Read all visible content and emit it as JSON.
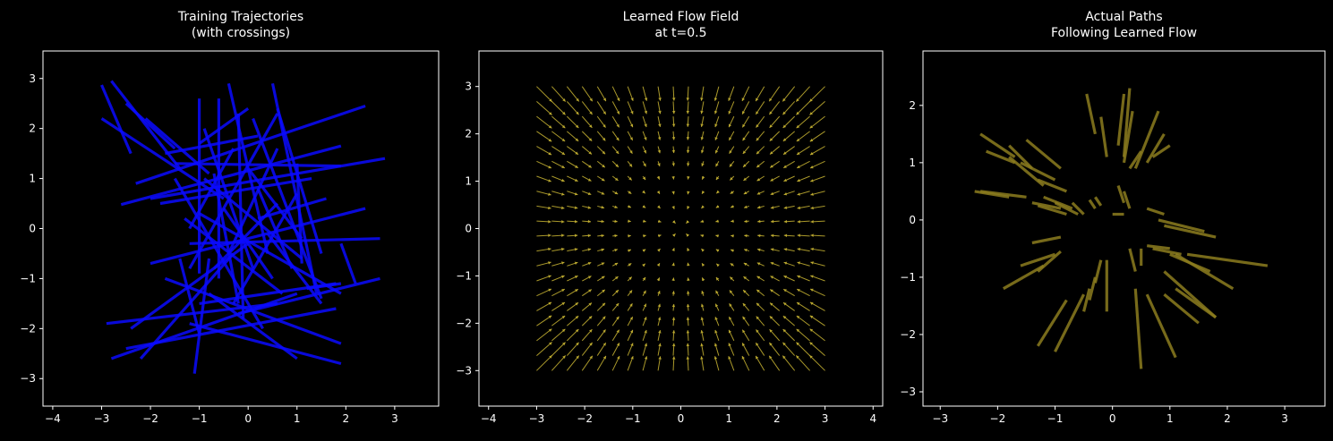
{
  "figure": {
    "background": "#000000",
    "foreground": "#ffffff"
  },
  "chart_data": [
    {
      "type": "line",
      "title": "Training Trajectories\n(with crossings)",
      "xlabel": "",
      "ylabel": "",
      "xlim": [
        -4.2,
        3.9
      ],
      "ylim": [
        -3.55,
        3.55
      ],
      "xticks": [
        -4,
        -3,
        -2,
        -1,
        0,
        1,
        2,
        3
      ],
      "yticks": [
        -3,
        -2,
        -1,
        0,
        1,
        2,
        3
      ],
      "grid": false,
      "color": "#0a0aff",
      "series": [
        {
          "x": [
            -3.0,
            -2.4
          ],
          "y": [
            2.87,
            1.5
          ]
        },
        {
          "x": [
            -2.8,
            -1.4
          ],
          "y": [
            2.95,
            1.2
          ]
        },
        {
          "x": [
            -2.5,
            -1.5
          ],
          "y": [
            2.5,
            1.6
          ]
        },
        {
          "x": [
            -2.1,
            -0.8
          ],
          "y": [
            2.2,
            1.1
          ]
        },
        {
          "x": [
            -3.0,
            -0.5
          ],
          "y": [
            2.2,
            0.6
          ]
        },
        {
          "x": [
            -2.6,
            1.9
          ],
          "y": [
            0.48,
            1.65
          ]
        },
        {
          "x": [
            -2.3,
            2.4
          ],
          "y": [
            0.9,
            2.45
          ]
        },
        {
          "x": [
            -1.8,
            1.3
          ],
          "y": [
            0.5,
            1.0
          ]
        },
        {
          "x": [
            -2.0,
            2.8
          ],
          "y": [
            0.6,
            1.4
          ]
        },
        {
          "x": [
            -1.5,
            1.9
          ],
          "y": [
            1.3,
            1.25
          ]
        },
        {
          "x": [
            -1.7,
            0.2
          ],
          "y": [
            1.5,
            1.85
          ]
        },
        {
          "x": [
            -1.0,
            -1.0
          ],
          "y": [
            2.6,
            -0.9
          ]
        },
        {
          "x": [
            -1.0,
            0.0
          ],
          "y": [
            1.7,
            2.4
          ]
        },
        {
          "x": [
            -0.6,
            -0.6
          ],
          "y": [
            2.6,
            -1.0
          ]
        },
        {
          "x": [
            -0.9,
            0.1
          ],
          "y": [
            2.0,
            -0.8
          ]
        },
        {
          "x": [
            -0.4,
            0.4
          ],
          "y": [
            2.9,
            -0.5
          ]
        },
        {
          "x": [
            0.5,
            1.4
          ],
          "y": [
            2.9,
            -1.3
          ]
        },
        {
          "x": [
            0.6,
            1.5
          ],
          "y": [
            2.4,
            -0.5
          ]
        },
        {
          "x": [
            0.1,
            1.5
          ],
          "y": [
            2.2,
            -1.4
          ]
        },
        {
          "x": [
            -0.2,
            -0.1
          ],
          "y": [
            2.3,
            -1.8
          ]
        },
        {
          "x": [
            0.6,
            -1.2
          ],
          "y": [
            2.3,
            -0.8
          ]
        },
        {
          "x": [
            -1.3,
            0.7
          ],
          "y": [
            0.2,
            -1.3
          ]
        },
        {
          "x": [
            -1.5,
            0.3
          ],
          "y": [
            1.0,
            -2.0
          ]
        },
        {
          "x": [
            -2.0,
            2.4
          ],
          "y": [
            -0.7,
            0.4
          ]
        },
        {
          "x": [
            -1.2,
            2.7
          ],
          "y": [
            -0.3,
            -0.2
          ]
        },
        {
          "x": [
            -1.0,
            1.9
          ],
          "y": [
            0.3,
            -1.3
          ]
        },
        {
          "x": [
            -0.9,
            1.1
          ],
          "y": [
            1.0,
            -0.6
          ]
        },
        {
          "x": [
            0.0,
            1.1
          ],
          "y": [
            1.2,
            -0.2
          ]
        },
        {
          "x": [
            -0.4,
            0.6
          ],
          "y": [
            -0.5,
            1.6
          ]
        },
        {
          "x": [
            -0.7,
            -0.2
          ],
          "y": [
            1.1,
            -1.5
          ]
        },
        {
          "x": [
            -2.4,
            0.0
          ],
          "y": [
            -2.0,
            -0.3
          ]
        },
        {
          "x": [
            -2.2,
            -0.3
          ],
          "y": [
            -2.6,
            -0.5
          ]
        },
        {
          "x": [
            -2.8,
            1.0
          ],
          "y": [
            -2.6,
            -1.3
          ]
        },
        {
          "x": [
            -2.5,
            1.8
          ],
          "y": [
            -2.4,
            -1.6
          ]
        },
        {
          "x": [
            -2.9,
            0.6
          ],
          "y": [
            -1.9,
            -1.5
          ]
        },
        {
          "x": [
            -1.7,
            1.9
          ],
          "y": [
            -1.0,
            -2.3
          ]
        },
        {
          "x": [
            -1.4,
            -1.0
          ],
          "y": [
            -0.6,
            -2.1
          ]
        },
        {
          "x": [
            -0.8,
            -1.1
          ],
          "y": [
            -0.6,
            -2.9
          ]
        },
        {
          "x": [
            -1.0,
            1.8
          ],
          "y": [
            -1.5,
            -1.1
          ]
        },
        {
          "x": [
            -0.2,
            2.7
          ],
          "y": [
            -1.7,
            -1.0
          ]
        },
        {
          "x": [
            -0.8,
            1.0
          ],
          "y": [
            -1.3,
            -2.6
          ]
        },
        {
          "x": [
            -1.2,
            1.9
          ],
          "y": [
            -1.9,
            -2.7
          ]
        },
        {
          "x": [
            0.4,
            1.5
          ],
          "y": [
            -0.1,
            -1.5
          ]
        },
        {
          "x": [
            -0.3,
            1.0
          ],
          "y": [
            -1.5,
            0.7
          ]
        },
        {
          "x": [
            0.2,
            0.9
          ],
          "y": [
            0.8,
            -0.8
          ]
        },
        {
          "x": [
            1.0,
            1.1
          ],
          "y": [
            1.3,
            -0.7
          ]
        },
        {
          "x": [
            1.9,
            2.2
          ],
          "y": [
            -0.3,
            -1.1
          ]
        },
        {
          "x": [
            1.9,
            1.2
          ],
          "y": [
            -1.1,
            -1.2
          ]
        },
        {
          "x": [
            0.2,
            1.6
          ],
          "y": [
            0.2,
            0.6
          ]
        },
        {
          "x": [
            -1.2,
            -0.3
          ],
          "y": [
            0.0,
            1.6
          ]
        },
        {
          "x": [
            -0.7,
            0.6
          ],
          "y": [
            -0.8,
            0.5
          ]
        },
        {
          "x": [
            -0.5,
            0.5
          ],
          "y": [
            0.4,
            -1.0
          ]
        }
      ]
    },
    {
      "type": "quiver",
      "title": "Learned Flow Field\nat t=0.5",
      "xlabel": "",
      "ylabel": "",
      "xlim": [
        -4.2,
        4.2
      ],
      "ylim": [
        -3.75,
        3.75
      ],
      "xticks": [
        -4,
        -3,
        -2,
        -1,
        0,
        1,
        2,
        3,
        4
      ],
      "yticks": [
        -3,
        -2,
        -1,
        0,
        1,
        2,
        3
      ],
      "grid": false,
      "color": "#c8b432",
      "grid_x": {
        "start": -3,
        "stop": 3,
        "n": 20
      },
      "grid_y": {
        "start": -3,
        "stop": 3,
        "n": 20
      },
      "field": "radial-inward",
      "scale": 0.45
    },
    {
      "type": "line",
      "title": "Actual Paths\nFollowing Learned Flow",
      "xlabel": "",
      "ylabel": "",
      "xlim": [
        -3.3,
        3.7
      ],
      "ylim": [
        -3.25,
        2.95
      ],
      "xticks": [
        -3,
        -2,
        -1,
        0,
        1,
        2,
        3
      ],
      "yticks": [
        -3,
        -2,
        -1,
        0,
        1,
        2
      ],
      "grid": false,
      "color": "#8c7d1e",
      "series": [
        {
          "x": [
            -2.3,
            -1.7
          ],
          "y": [
            1.5,
            1.1
          ]
        },
        {
          "x": [
            -2.2,
            -1.7
          ],
          "y": [
            1.2,
            1.0
          ]
        },
        {
          "x": [
            -2.4,
            -1.8
          ],
          "y": [
            0.5,
            0.4
          ]
        },
        {
          "x": [
            -2.3,
            -1.5
          ],
          "y": [
            0.5,
            0.4
          ]
        },
        {
          "x": [
            -1.8,
            -1.4
          ],
          "y": [
            1.3,
            0.9
          ]
        },
        {
          "x": [
            -1.5,
            -0.9
          ],
          "y": [
            1.4,
            0.9
          ]
        },
        {
          "x": [
            -1.8,
            -1.2
          ],
          "y": [
            1.1,
            0.6
          ]
        },
        {
          "x": [
            -1.6,
            -1.0
          ],
          "y": [
            1.0,
            0.7
          ]
        },
        {
          "x": [
            -1.3,
            -0.8
          ],
          "y": [
            0.7,
            0.5
          ]
        },
        {
          "x": [
            -1.4,
            -0.9
          ],
          "y": [
            0.3,
            0.2
          ]
        },
        {
          "x": [
            -1.3,
            -0.8
          ],
          "y": [
            0.25,
            0.1
          ]
        },
        {
          "x": [
            -1.2,
            -0.7
          ],
          "y": [
            0.4,
            0.2
          ]
        },
        {
          "x": [
            -1.0,
            -0.6
          ],
          "y": [
            0.3,
            0.1
          ]
        },
        {
          "x": [
            -0.7,
            -0.5
          ],
          "y": [
            0.3,
            0.1
          ]
        },
        {
          "x": [
            -0.3,
            -0.2
          ],
          "y": [
            0.4,
            0.25
          ]
        },
        {
          "x": [
            -0.4,
            -0.3
          ],
          "y": [
            0.35,
            0.2
          ]
        },
        {
          "x": [
            -1.4,
            -0.9
          ],
          "y": [
            -0.4,
            -0.3
          ]
        },
        {
          "x": [
            -1.6,
            -1.0
          ],
          "y": [
            -0.8,
            -0.6
          ]
        },
        {
          "x": [
            -1.3,
            -0.9
          ],
          "y": [
            -0.9,
            -0.55
          ]
        },
        {
          "x": [
            -1.9,
            -1.2
          ],
          "y": [
            -1.2,
            -0.8
          ]
        },
        {
          "x": [
            -1.0,
            -0.5
          ],
          "y": [
            -2.3,
            -1.3
          ]
        },
        {
          "x": [
            -1.3,
            -0.8
          ],
          "y": [
            -2.2,
            -1.4
          ]
        },
        {
          "x": [
            -0.5,
            -0.4
          ],
          "y": [
            -1.6,
            -1.2
          ]
        },
        {
          "x": [
            -0.4,
            -0.3
          ],
          "y": [
            -1.4,
            -1.0
          ]
        },
        {
          "x": [
            -0.1,
            -0.1
          ],
          "y": [
            -1.6,
            -0.7
          ]
        },
        {
          "x": [
            -0.45,
            -0.3
          ],
          "y": [
            2.2,
            1.5
          ]
        },
        {
          "x": [
            -0.2,
            -0.1
          ],
          "y": [
            1.8,
            1.1
          ]
        },
        {
          "x": [
            0.2,
            0.1
          ],
          "y": [
            2.2,
            1.3
          ]
        },
        {
          "x": [
            0.3,
            0.2
          ],
          "y": [
            2.3,
            1.1
          ]
        },
        {
          "x": [
            0.35,
            0.2
          ],
          "y": [
            1.9,
            1.0
          ]
        },
        {
          "x": [
            0.5,
            0.3
          ],
          "y": [
            1.2,
            0.9
          ]
        },
        {
          "x": [
            0.8,
            0.4
          ],
          "y": [
            1.9,
            0.9
          ]
        },
        {
          "x": [
            0.9,
            0.6
          ],
          "y": [
            1.5,
            1.0
          ]
        },
        {
          "x": [
            1.0,
            0.7
          ],
          "y": [
            1.3,
            1.1
          ]
        },
        {
          "x": [
            0.1,
            0.2
          ],
          "y": [
            0.6,
            0.3
          ]
        },
        {
          "x": [
            0.2,
            0.3
          ],
          "y": [
            0.5,
            0.2
          ]
        },
        {
          "x": [
            0.0,
            0.2
          ],
          "y": [
            0.1,
            0.1
          ]
        },
        {
          "x": [
            0.6,
            0.9
          ],
          "y": [
            0.2,
            0.1
          ]
        },
        {
          "x": [
            0.8,
            1.6
          ],
          "y": [
            0.0,
            -0.2
          ]
        },
        {
          "x": [
            0.9,
            1.8
          ],
          "y": [
            -0.1,
            -0.3
          ]
        },
        {
          "x": [
            0.6,
            1.0
          ],
          "y": [
            -0.45,
            -0.5
          ]
        },
        {
          "x": [
            0.7,
            1.2
          ],
          "y": [
            -0.5,
            -0.6
          ]
        },
        {
          "x": [
            1.0,
            1.7
          ],
          "y": [
            -0.6,
            -0.9
          ]
        },
        {
          "x": [
            1.1,
            2.1
          ],
          "y": [
            -0.6,
            -1.2
          ]
        },
        {
          "x": [
            1.3,
            2.7
          ],
          "y": [
            -0.6,
            -0.8
          ]
        },
        {
          "x": [
            0.9,
            1.8
          ],
          "y": [
            -0.9,
            -1.7
          ]
        },
        {
          "x": [
            1.1,
            1.8
          ],
          "y": [
            -1.2,
            -1.7
          ]
        },
        {
          "x": [
            0.9,
            1.5
          ],
          "y": [
            -1.3,
            -1.8
          ]
        },
        {
          "x": [
            0.5,
            0.5
          ],
          "y": [
            -0.5,
            -0.8
          ]
        },
        {
          "x": [
            0.3,
            0.4
          ],
          "y": [
            -0.5,
            -0.9
          ]
        },
        {
          "x": [
            0.6,
            1.1
          ],
          "y": [
            -1.3,
            -2.4
          ]
        },
        {
          "x": [
            0.4,
            0.5
          ],
          "y": [
            -1.2,
            -2.6
          ]
        },
        {
          "x": [
            -0.3,
            -0.2
          ],
          "y": [
            -1.1,
            -0.7
          ]
        }
      ]
    }
  ]
}
